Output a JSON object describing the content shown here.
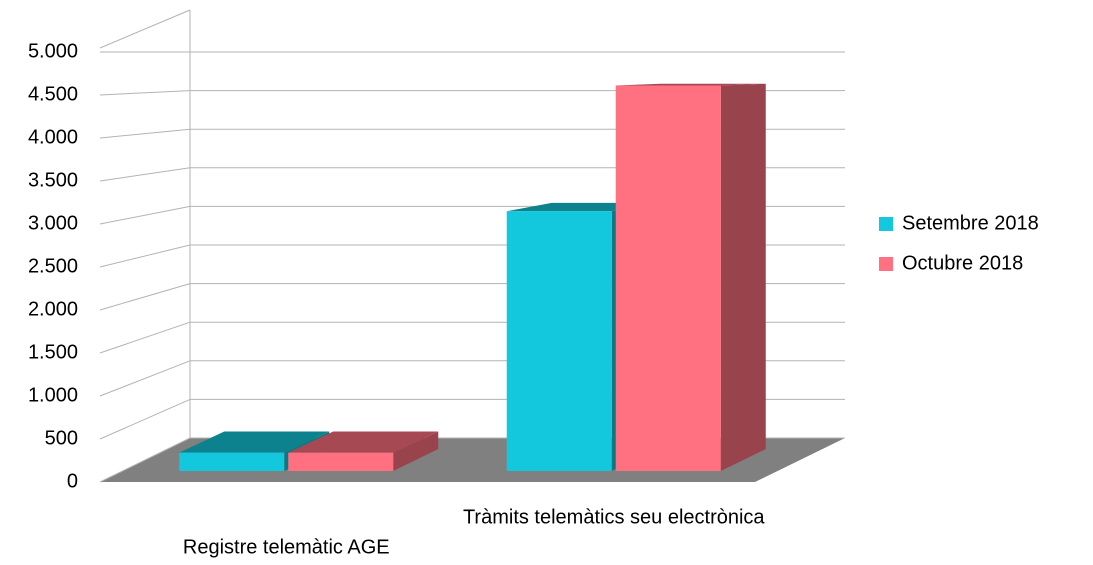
{
  "chart_data": {
    "type": "bar3d",
    "categories": [
      "Registre telemàtic AGE",
      "Tràmits telemàtics seu electrònica"
    ],
    "series": [
      {
        "name": "Setembre 2018",
        "color": "#13c8dc",
        "values": [
          220,
          3100
        ]
      },
      {
        "name": "Octubre 2018",
        "color": "#ff7080",
        "values": [
          220,
          4600
        ]
      }
    ],
    "ylim": [
      0,
      5000
    ],
    "yticks": [
      0,
      500,
      {
        "value": 1000,
        "label": "1.000"
      },
      {
        "value": 1500,
        "label": "1.500"
      },
      {
        "value": 2000,
        "label": "2.000"
      },
      {
        "value": 2500,
        "label": "2.500"
      },
      {
        "value": 3000,
        "label": "3.000"
      },
      {
        "value": 3500,
        "label": "3.500"
      },
      {
        "value": 4000,
        "label": "4.000"
      },
      {
        "value": 4500,
        "label": "4.500"
      },
      {
        "value": 5000,
        "label": "5.000"
      }
    ],
    "grid": true
  }
}
